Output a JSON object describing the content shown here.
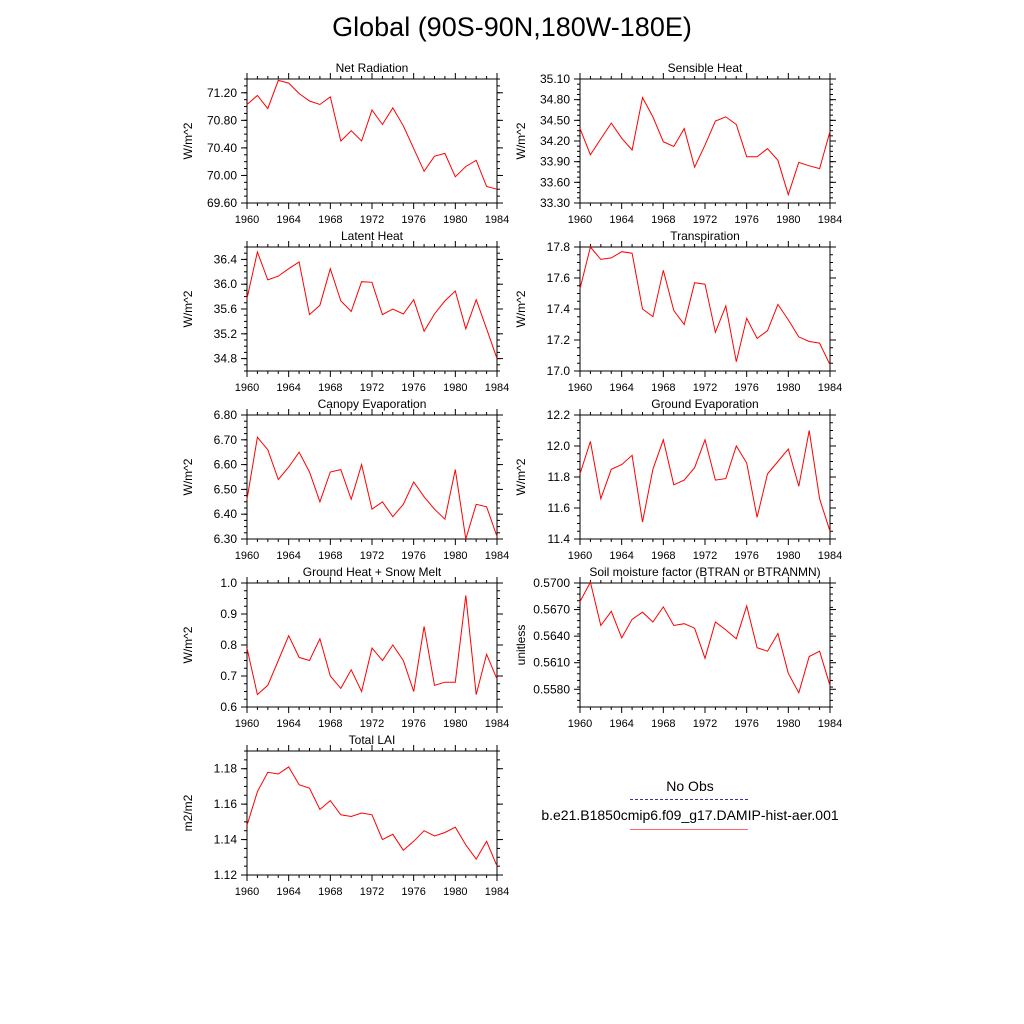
{
  "title": "Global (90S-90N,180W-180E)",
  "legend": {
    "obs_label": "No Obs",
    "model_label": "b.e21.B1850cmip6.f09_g17.DAMIP-hist-aer.001",
    "obs_color": "#3333aa",
    "model_color": "#ff0000"
  },
  "chart_data": [
    {
      "type": "line",
      "title": "Net Radiation",
      "ylabel": "W/m^2",
      "xlim": [
        1960,
        1984
      ],
      "ylim": [
        69.6,
        71.4
      ],
      "xticks": [
        "1960",
        "1964",
        "1968",
        "1972",
        "1976",
        "1980",
        "1984"
      ],
      "yticks": [
        "69.60",
        "70.00",
        "70.40",
        "70.80",
        "71.20"
      ],
      "x": [
        1960,
        1961,
        1962,
        1963,
        1964,
        1965,
        1966,
        1967,
        1968,
        1969,
        1970,
        1971,
        1972,
        1973,
        1974,
        1975,
        1976,
        1977,
        1978,
        1979,
        1980,
        1981,
        1982,
        1983,
        1984
      ],
      "series": [
        {
          "color": "#ff0000",
          "values": [
            71.03,
            71.16,
            70.97,
            71.38,
            71.34,
            71.19,
            71.08,
            71.03,
            71.14,
            70.5,
            70.65,
            70.5,
            70.95,
            70.74,
            70.98,
            70.72,
            70.39,
            70.06,
            70.28,
            70.32,
            69.98,
            70.13,
            70.22,
            69.84,
            69.8
          ]
        }
      ]
    },
    {
      "type": "line",
      "title": "Sensible Heat",
      "ylabel": "W/m^2",
      "xlim": [
        1960,
        1984
      ],
      "ylim": [
        33.3,
        35.1
      ],
      "xticks": [
        "1960",
        "1964",
        "1968",
        "1972",
        "1976",
        "1980",
        "1984"
      ],
      "yticks": [
        "33.30",
        "33.60",
        "33.90",
        "34.20",
        "34.50",
        "34.80",
        "35.10"
      ],
      "x": [
        1960,
        1961,
        1962,
        1963,
        1964,
        1965,
        1966,
        1967,
        1968,
        1969,
        1970,
        1971,
        1972,
        1973,
        1974,
        1975,
        1976,
        1977,
        1978,
        1979,
        1980,
        1981,
        1982,
        1983,
        1984
      ],
      "series": [
        {
          "color": "#ff0000",
          "values": [
            34.38,
            34.0,
            34.23,
            34.46,
            34.24,
            34.07,
            34.83,
            34.55,
            34.19,
            34.12,
            34.38,
            33.82,
            34.14,
            34.49,
            34.55,
            34.44,
            33.97,
            33.97,
            34.09,
            33.92,
            33.42,
            33.89,
            33.84,
            33.8,
            34.34
          ]
        }
      ]
    },
    {
      "type": "line",
      "title": "Latent Heat",
      "ylabel": "W/m^2",
      "xlim": [
        1960,
        1984
      ],
      "ylim": [
        34.6,
        36.6
      ],
      "xticks": [
        "1960",
        "1964",
        "1968",
        "1972",
        "1976",
        "1980",
        "1984"
      ],
      "yticks": [
        "34.8",
        "35.2",
        "35.6",
        "36.0",
        "36.4"
      ],
      "x": [
        1960,
        1961,
        1962,
        1963,
        1964,
        1965,
        1966,
        1967,
        1968,
        1969,
        1970,
        1971,
        1972,
        1973,
        1974,
        1975,
        1976,
        1977,
        1978,
        1979,
        1980,
        1981,
        1982,
        1983,
        1984
      ],
      "series": [
        {
          "color": "#ff0000",
          "values": [
            35.77,
            36.52,
            36.07,
            36.13,
            36.25,
            36.36,
            35.51,
            35.66,
            36.25,
            35.73,
            35.56,
            36.04,
            36.03,
            35.51,
            35.6,
            35.52,
            35.75,
            35.24,
            35.52,
            35.73,
            35.89,
            35.28,
            35.75,
            35.28,
            34.8
          ]
        }
      ]
    },
    {
      "type": "line",
      "title": "Transpiration",
      "ylabel": "W/m^2",
      "xlim": [
        1960,
        1984
      ],
      "ylim": [
        17.0,
        17.8
      ],
      "xticks": [
        "1960",
        "1964",
        "1968",
        "1972",
        "1976",
        "1980",
        "1984"
      ],
      "yticks": [
        "17.0",
        "17.2",
        "17.4",
        "17.6",
        "17.8"
      ],
      "x": [
        1960,
        1961,
        1962,
        1963,
        1964,
        1965,
        1966,
        1967,
        1968,
        1969,
        1970,
        1971,
        1972,
        1973,
        1974,
        1975,
        1976,
        1977,
        1978,
        1979,
        1980,
        1981,
        1982,
        1983,
        1984
      ],
      "series": [
        {
          "color": "#ff0000",
          "values": [
            17.53,
            17.8,
            17.72,
            17.73,
            17.77,
            17.76,
            17.4,
            17.35,
            17.65,
            17.39,
            17.3,
            17.57,
            17.56,
            17.25,
            17.42,
            17.06,
            17.34,
            17.21,
            17.26,
            17.43,
            17.33,
            17.22,
            17.19,
            17.18,
            17.04
          ]
        }
      ]
    },
    {
      "type": "line",
      "title": "Canopy Evaporation",
      "ylabel": "W/m^2",
      "xlim": [
        1960,
        1984
      ],
      "ylim": [
        6.3,
        6.8
      ],
      "xticks": [
        "1960",
        "1964",
        "1968",
        "1972",
        "1976",
        "1980",
        "1984"
      ],
      "yticks": [
        "6.30",
        "6.40",
        "6.50",
        "6.60",
        "6.70",
        "6.80"
      ],
      "x": [
        1960,
        1961,
        1962,
        1963,
        1964,
        1965,
        1966,
        1967,
        1968,
        1969,
        1970,
        1971,
        1972,
        1973,
        1974,
        1975,
        1976,
        1977,
        1978,
        1979,
        1980,
        1981,
        1982,
        1983,
        1984
      ],
      "series": [
        {
          "color": "#ff0000",
          "values": [
            6.46,
            6.71,
            6.66,
            6.54,
            6.59,
            6.65,
            6.57,
            6.45,
            6.57,
            6.58,
            6.46,
            6.6,
            6.42,
            6.45,
            6.39,
            6.44,
            6.53,
            6.47,
            6.42,
            6.38,
            6.58,
            6.3,
            6.44,
            6.43,
            6.31
          ]
        }
      ]
    },
    {
      "type": "line",
      "title": "Ground Evaporation",
      "ylabel": "W/m^2",
      "xlim": [
        1960,
        1984
      ],
      "ylim": [
        11.4,
        12.2
      ],
      "xticks": [
        "1960",
        "1964",
        "1968",
        "1972",
        "1976",
        "1980",
        "1984"
      ],
      "yticks": [
        "11.4",
        "11.6",
        "11.8",
        "12.0",
        "12.2"
      ],
      "x": [
        1960,
        1961,
        1962,
        1963,
        1964,
        1965,
        1966,
        1967,
        1968,
        1969,
        1970,
        1971,
        1972,
        1973,
        1974,
        1975,
        1976,
        1977,
        1978,
        1979,
        1980,
        1981,
        1982,
        1983,
        1984
      ],
      "series": [
        {
          "color": "#ff0000",
          "values": [
            11.82,
            12.03,
            11.66,
            11.85,
            11.88,
            11.94,
            11.51,
            11.85,
            12.04,
            11.75,
            11.78,
            11.86,
            12.04,
            11.78,
            11.79,
            12.0,
            11.89,
            11.54,
            11.82,
            11.9,
            11.98,
            11.74,
            12.1,
            11.66,
            11.45
          ]
        }
      ]
    },
    {
      "type": "line",
      "title": "Ground Heat + Snow Melt",
      "ylabel": "W/m^2",
      "xlim": [
        1960,
        1984
      ],
      "ylim": [
        0.6,
        1.0
      ],
      "xticks": [
        "1960",
        "1964",
        "1968",
        "1972",
        "1976",
        "1980",
        "1984"
      ],
      "yticks": [
        "0.6",
        "0.7",
        "0.8",
        "0.9",
        "1.0"
      ],
      "x": [
        1960,
        1961,
        1962,
        1963,
        1964,
        1965,
        1966,
        1967,
        1968,
        1969,
        1970,
        1971,
        1972,
        1973,
        1974,
        1975,
        1976,
        1977,
        1978,
        1979,
        1980,
        1981,
        1982,
        1983,
        1984
      ],
      "series": [
        {
          "color": "#ff0000",
          "values": [
            0.79,
            0.64,
            0.67,
            0.75,
            0.83,
            0.76,
            0.75,
            0.82,
            0.7,
            0.66,
            0.72,
            0.65,
            0.79,
            0.75,
            0.8,
            0.75,
            0.65,
            0.86,
            0.67,
            0.68,
            0.68,
            0.96,
            0.64,
            0.77,
            0.69
          ]
        }
      ]
    },
    {
      "type": "line",
      "title": "Soil moisture factor (BTRAN or BTRANMN)",
      "ylabel": "unitless",
      "xlim": [
        1960,
        1984
      ],
      "ylim": [
        0.556,
        0.57
      ],
      "xticks": [
        "1960",
        "1964",
        "1968",
        "1972",
        "1976",
        "1980",
        "1984"
      ],
      "yticks": [
        "0.5580",
        "0.5610",
        "0.5640",
        "0.5670",
        "0.5700"
      ],
      "x": [
        1960,
        1961,
        1962,
        1963,
        1964,
        1965,
        1966,
        1967,
        1968,
        1969,
        1970,
        1971,
        1972,
        1973,
        1974,
        1975,
        1976,
        1977,
        1978,
        1979,
        1980,
        1981,
        1982,
        1983,
        1984
      ],
      "series": [
        {
          "color": "#ff0000",
          "values": [
            0.5679,
            0.5701,
            0.5652,
            0.5668,
            0.5638,
            0.5659,
            0.5667,
            0.5656,
            0.5673,
            0.5652,
            0.5654,
            0.5649,
            0.5615,
            0.5656,
            0.5647,
            0.5637,
            0.5674,
            0.5627,
            0.5623,
            0.5643,
            0.5598,
            0.5576,
            0.5617,
            0.5623,
            0.5584
          ]
        }
      ]
    },
    {
      "type": "line",
      "title": "Total LAI",
      "ylabel": "m2/m2",
      "xlim": [
        1960,
        1984
      ],
      "ylim": [
        1.12,
        1.19
      ],
      "xticks": [
        "1960",
        "1964",
        "1968",
        "1972",
        "1976",
        "1980",
        "1984"
      ],
      "yticks": [
        "1.12",
        "1.14",
        "1.16",
        "1.18"
      ],
      "x": [
        1960,
        1961,
        1962,
        1963,
        1964,
        1965,
        1966,
        1967,
        1968,
        1969,
        1970,
        1971,
        1972,
        1973,
        1974,
        1975,
        1976,
        1977,
        1978,
        1979,
        1980,
        1981,
        1982,
        1983,
        1984
      ],
      "series": [
        {
          "color": "#ff0000",
          "values": [
            1.148,
            1.167,
            1.178,
            1.177,
            1.181,
            1.171,
            1.169,
            1.157,
            1.162,
            1.154,
            1.153,
            1.155,
            1.154,
            1.14,
            1.143,
            1.134,
            1.139,
            1.145,
            1.142,
            1.144,
            1.147,
            1.137,
            1.129,
            1.139,
            1.125
          ]
        }
      ]
    }
  ]
}
